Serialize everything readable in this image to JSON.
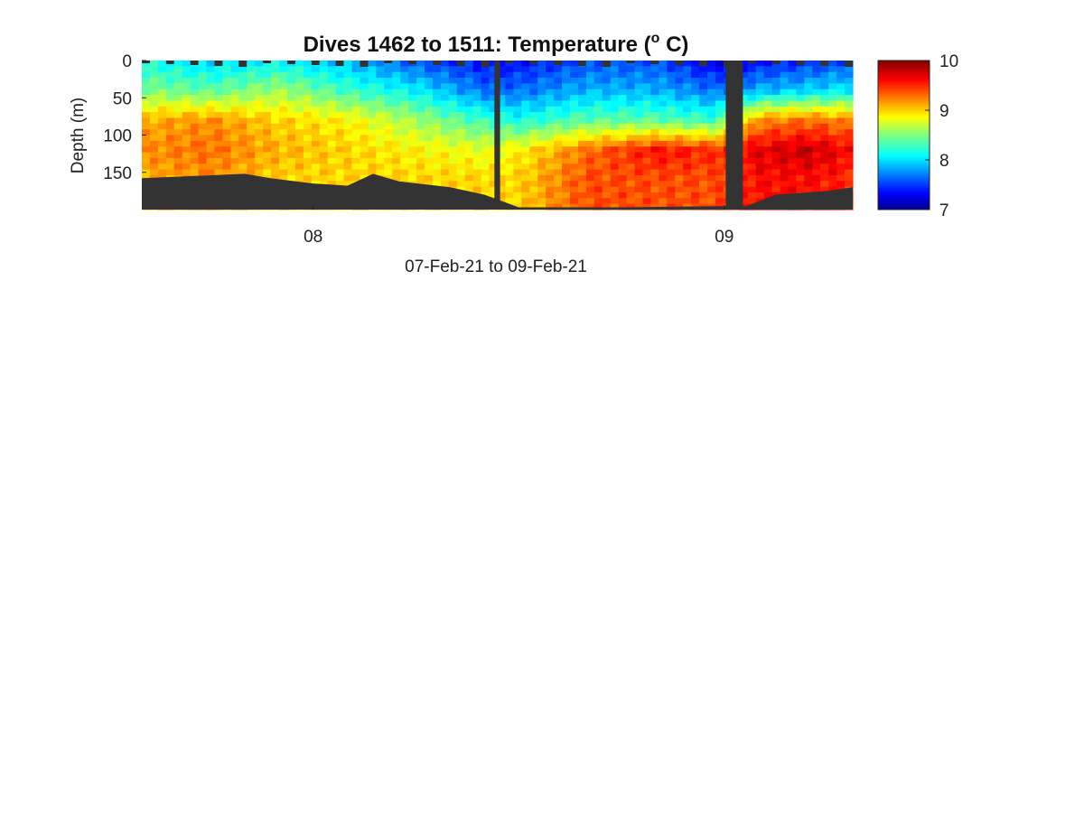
{
  "chart_data": {
    "type": "heatmap",
    "title": {
      "text": "Dives 1462 to 1511: Temperature (",
      "superscript": "o",
      "suffix": " C)"
    },
    "xlabel": "07-Feb-21 to 09-Feb-21",
    "ylabel": "Depth (m)",
    "x_axis": {
      "type": "date",
      "range": [
        "2021-02-07T14:00",
        "2021-02-09T07:30"
      ],
      "ticks": [
        {
          "value": "2021-02-08T00:00",
          "label": "08"
        },
        {
          "value": "2021-02-09T00:00",
          "label": "09"
        }
      ]
    },
    "y_axis": {
      "reversed": true,
      "range": [
        0,
        200
      ],
      "ticks": [
        {
          "value": 0,
          "label": "0"
        },
        {
          "value": 50,
          "label": "50"
        },
        {
          "value": 100,
          "label": "100"
        },
        {
          "value": 150,
          "label": "150"
        }
      ]
    },
    "colorbar": {
      "colormap": "jet",
      "range": [
        7,
        10
      ],
      "ticks": [
        {
          "value": 7,
          "label": "7"
        },
        {
          "value": 8,
          "label": "8"
        },
        {
          "value": 9,
          "label": "9"
        },
        {
          "value": 10,
          "label": "10"
        }
      ]
    },
    "no_data_color": "#333333",
    "gaps": [
      {
        "start": "2021-02-08T10:35",
        "end": "2021-02-08T10:55"
      },
      {
        "start": "2021-02-09T00:05",
        "end": "2021-02-09T01:05"
      }
    ],
    "bottom_depth": [
      {
        "t": "2021-02-07T14:00",
        "depth": 158
      },
      {
        "t": "2021-02-07T17:00",
        "depth": 155
      },
      {
        "t": "2021-02-07T20:00",
        "depth": 152
      },
      {
        "t": "2021-02-07T21:30",
        "depth": 158
      },
      {
        "t": "2021-02-08T00:00",
        "depth": 165
      },
      {
        "t": "2021-02-08T02:00",
        "depth": 168
      },
      {
        "t": "2021-02-08T03:30",
        "depth": 152
      },
      {
        "t": "2021-02-08T05:00",
        "depth": 162
      },
      {
        "t": "2021-02-08T08:00",
        "depth": 170
      },
      {
        "t": "2021-02-08T10:00",
        "depth": 180
      },
      {
        "t": "2021-02-08T12:00",
        "depth": 197
      },
      {
        "t": "2021-02-08T18:00",
        "depth": 197
      },
      {
        "t": "2021-02-09T01:20",
        "depth": 195
      },
      {
        "t": "2021-02-09T03:00",
        "depth": 180
      },
      {
        "t": "2021-02-09T06:00",
        "depth": 175
      },
      {
        "t": "2021-02-09T07:30",
        "depth": 170
      }
    ],
    "temperature_profiles": [
      {
        "t": "2021-02-07T14:00",
        "depth": [
          0,
          40,
          80,
          120,
          160
        ],
        "temp": [
          8.2,
          8.5,
          9.1,
          9.2,
          9.1
        ]
      },
      {
        "t": "2021-02-07T18:00",
        "depth": [
          0,
          40,
          80,
          120,
          160
        ],
        "temp": [
          8.0,
          8.4,
          9.2,
          9.3,
          9.2
        ]
      },
      {
        "t": "2021-02-07T22:00",
        "depth": [
          0,
          40,
          80,
          120,
          160
        ],
        "temp": [
          8.1,
          8.6,
          9.0,
          9.1,
          9.0
        ]
      },
      {
        "t": "2021-02-08T02:00",
        "depth": [
          0,
          40,
          80,
          120,
          160
        ],
        "temp": [
          7.9,
          8.3,
          8.9,
          9.0,
          9.0
        ]
      },
      {
        "t": "2021-02-08T06:00",
        "depth": [
          0,
          40,
          80,
          120,
          160
        ],
        "temp": [
          7.6,
          8.1,
          8.6,
          8.9,
          9.0
        ]
      },
      {
        "t": "2021-02-08T10:00",
        "depth": [
          0,
          40,
          80,
          120,
          160
        ],
        "temp": [
          7.4,
          7.7,
          8.3,
          8.8,
          9.0
        ]
      },
      {
        "t": "2021-02-08T12:00",
        "depth": [
          0,
          40,
          80,
          120,
          160
        ],
        "temp": [
          7.4,
          7.7,
          8.2,
          8.9,
          9.0
        ]
      },
      {
        "t": "2021-02-08T16:00",
        "depth": [
          0,
          40,
          80,
          120,
          160
        ],
        "temp": [
          7.6,
          7.9,
          8.4,
          9.3,
          9.4
        ]
      },
      {
        "t": "2021-02-08T20:00",
        "depth": [
          0,
          40,
          80,
          120,
          160
        ],
        "temp": [
          7.6,
          7.9,
          8.4,
          9.6,
          9.4
        ]
      },
      {
        "t": "2021-02-08T23:30",
        "depth": [
          0,
          40,
          80,
          120,
          160
        ],
        "temp": [
          7.3,
          7.7,
          8.3,
          9.5,
          9.4
        ]
      },
      {
        "t": "2021-02-09T02:00",
        "depth": [
          0,
          40,
          80,
          120,
          160
        ],
        "temp": [
          7.4,
          7.9,
          9.2,
          9.7,
          9.6
        ]
      },
      {
        "t": "2021-02-09T05:00",
        "depth": [
          0,
          40,
          80,
          120,
          160
        ],
        "temp": [
          7.5,
          8.0,
          9.3,
          9.8,
          9.6
        ]
      },
      {
        "t": "2021-02-09T07:30",
        "depth": [
          0,
          40,
          80,
          120,
          160
        ],
        "temp": [
          7.6,
          8.1,
          9.2,
          9.6,
          9.5
        ]
      }
    ]
  }
}
